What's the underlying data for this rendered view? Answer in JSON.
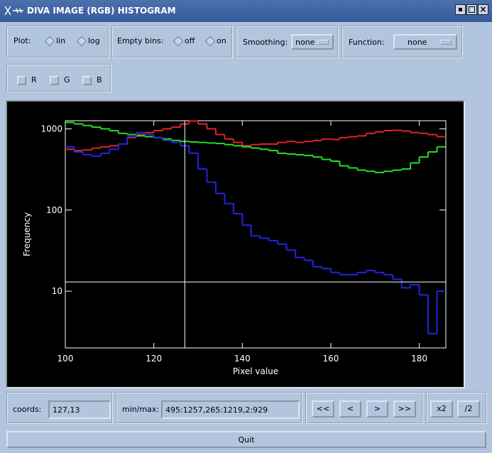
{
  "window": {
    "title": "DIVA IMAGE (RGB) HISTOGRAM"
  },
  "toolbar": {
    "plot": {
      "label": "Plot:",
      "options": [
        "lin",
        "log"
      ]
    },
    "empty_bins": {
      "label": "Empty bins:",
      "options": [
        "off",
        "on"
      ]
    },
    "smoothing": {
      "label": "Smoothing:",
      "value": "none"
    },
    "function": {
      "label": "Function:",
      "value": "none"
    },
    "channels": [
      "R",
      "G",
      "B"
    ]
  },
  "chart_data": {
    "type": "histogram",
    "xlabel": "Pixel value",
    "ylabel": "Frequency",
    "bins": [
      100,
      102,
      104,
      106,
      108,
      110,
      112,
      114,
      116,
      118,
      120,
      122,
      124,
      126,
      128,
      130,
      132,
      134,
      136,
      138,
      140,
      142,
      144,
      146,
      148,
      150,
      152,
      154,
      156,
      158,
      160,
      162,
      164,
      166,
      168,
      170,
      172,
      174,
      176,
      178,
      180,
      182,
      184,
      186
    ],
    "series": [
      {
        "name": "R",
        "color": "#e02424",
        "values": [
          560,
          540,
          550,
          580,
          600,
          620,
          650,
          780,
          850,
          900,
          950,
          1000,
          1050,
          1150,
          1250,
          1150,
          1000,
          850,
          750,
          680,
          620,
          640,
          650,
          650,
          680,
          700,
          680,
          700,
          720,
          750,
          740,
          780,
          800,
          820,
          880,
          920,
          950,
          960,
          940,
          900,
          880,
          850,
          800
        ]
      },
      {
        "name": "G",
        "color": "#24e024",
        "values": [
          1200,
          1150,
          1100,
          1050,
          1000,
          950,
          880,
          850,
          820,
          800,
          780,
          750,
          720,
          700,
          690,
          680,
          670,
          660,
          640,
          620,
          600,
          580,
          560,
          540,
          500,
          490,
          480,
          470,
          450,
          420,
          400,
          350,
          330,
          310,
          300,
          290,
          300,
          310,
          320,
          380,
          450,
          520,
          600
        ]
      },
      {
        "name": "B",
        "color": "#2424e0",
        "values": [
          600,
          520,
          480,
          460,
          500,
          560,
          650,
          800,
          900,
          850,
          780,
          720,
          680,
          620,
          500,
          320,
          220,
          160,
          120,
          90,
          65,
          48,
          45,
          42,
          38,
          32,
          26,
          24,
          20,
          19,
          17,
          16,
          16,
          17,
          18,
          17,
          16,
          14,
          11,
          12,
          9,
          3,
          10
        ]
      }
    ],
    "xlim": [
      100,
      186
    ],
    "xticks": [
      100,
      120,
      140,
      160,
      180
    ],
    "ylim": [
      2,
      1260
    ],
    "yticks": [
      10,
      100,
      1000
    ],
    "ylog": true,
    "crosshair": {
      "x": 127,
      "y": 13
    }
  },
  "footer": {
    "coords": {
      "label": "coords:",
      "value": "127,13"
    },
    "minmax": {
      "label": "min/max:",
      "value": "495:1257,265:1219,2:929"
    },
    "nav": [
      "<<",
      "<",
      ">",
      ">>"
    ],
    "zoom": [
      "x2",
      "/2"
    ],
    "quit": "Quit"
  }
}
